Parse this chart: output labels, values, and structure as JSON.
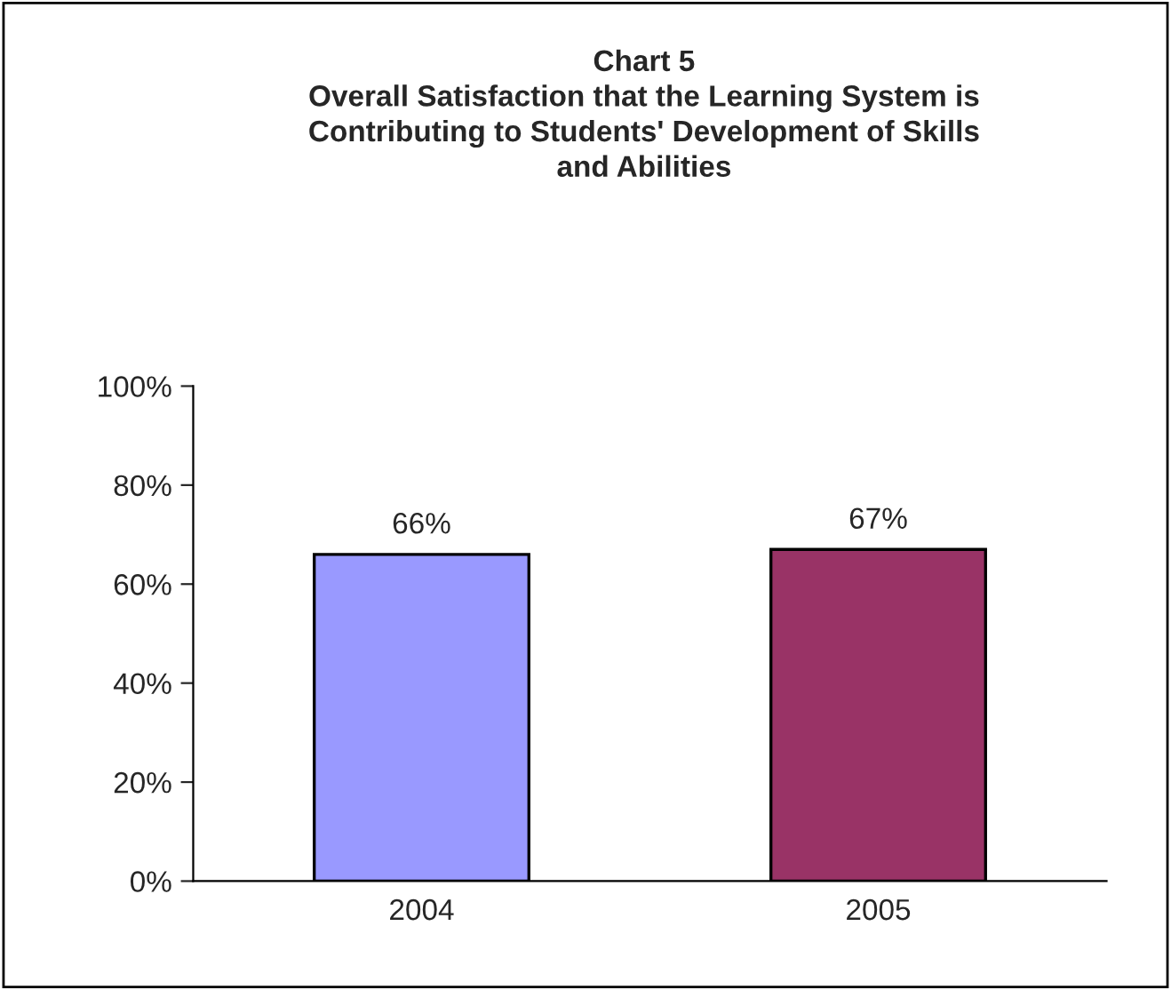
{
  "chart_data": {
    "type": "bar",
    "title": "Chart 5\nOverall Satisfaction that the Learning System is\nContributing to Students' Development of Skills\nand Abilities",
    "categories": [
      "2004",
      "2005"
    ],
    "values": [
      66,
      67
    ],
    "colors": [
      "#9999ff",
      "#993366"
    ],
    "value_labels": [
      "66%",
      "67%"
    ],
    "ylim": [
      0,
      100
    ],
    "yticks": [
      {
        "value": 0,
        "label": "0%"
      },
      {
        "value": 20,
        "label": "20%"
      },
      {
        "value": 40,
        "label": "40%"
      },
      {
        "value": 60,
        "label": "60%"
      },
      {
        "value": 80,
        "label": "80%"
      },
      {
        "value": 100,
        "label": "100%"
      }
    ],
    "grid": false,
    "legend": false
  }
}
